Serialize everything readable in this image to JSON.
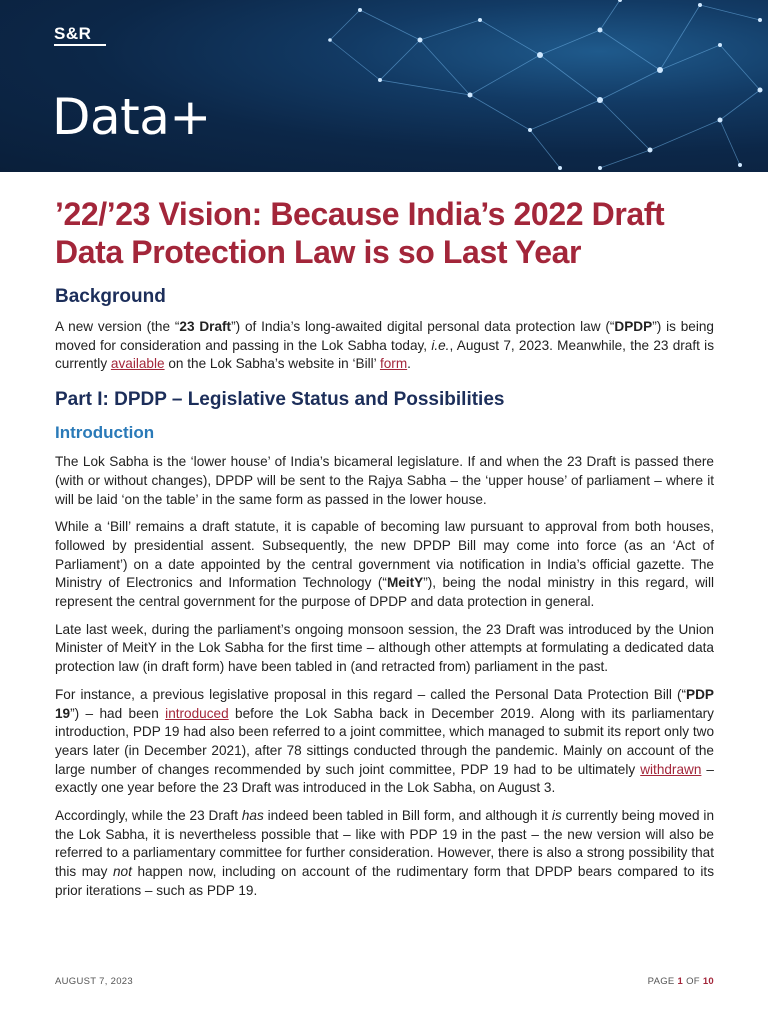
{
  "header": {
    "logo": "S&R",
    "brand": "Data+"
  },
  "title": "’22/’23 Vision: Because India’s 2022 Draft Data Protection Law is so Last Year",
  "background": {
    "heading": "Background",
    "p1": {
      "t1": "A new version (the “",
      "b1": "23 Draft",
      "t2": "”) of India’s long-awaited digital personal data protection law (“",
      "b2": "DPDP",
      "t3": "”) is being moved for consideration and passing in the Lok Sabha today, ",
      "i1": "i.e.",
      "t4": ", August 7, 2023. Meanwhile, the 23 draft is currently ",
      "link1": "available",
      "t5": " on the Lok Sabha’s website in ‘Bill’ ",
      "link2": "form",
      "t6": "."
    }
  },
  "part1": {
    "heading": "Part I: DPDP – Legislative Status and Possibilities",
    "intro_heading": "Introduction",
    "p1": "The Lok Sabha is the ‘lower house’ of India’s bicameral legislature. If and when the 23 Draft is passed there (with or without changes), DPDP will be sent to the Rajya Sabha – the ‘upper house’ of parliament – where it will be laid ‘on the table’ in the same form as passed in the lower house.",
    "p2": {
      "t1": "While a ‘Bill’ remains a draft statute, it is capable of becoming law pursuant to approval from both houses, followed by presidential assent. Subsequently, the new DPDP Bill may come into force (as an ‘Act of Parliament’) on a date appointed by the central government via notification in India’s official gazette. The Ministry of Electronics and Information Technology (“",
      "b1": "MeitY",
      "t2": "”), being the nodal ministry in this regard, will represent the central government for the purpose of DPDP and data protection in general."
    },
    "p3": "Late last week, during the parliament’s ongoing monsoon session, the 23 Draft was introduced by the Union Minister of MeitY in the Lok Sabha for the first time – although other attempts at formulating a dedicated data protection law (in draft form) have been tabled in (and retracted from) parliament in the past.",
    "p4": {
      "t1": "For instance, a previous legislative proposal in this regard – called the Personal Data Protection Bill (“",
      "b1": "PDP 19",
      "t2": "”) – had been ",
      "link1": "introduced",
      "t3": " before the Lok Sabha back in December 2019. Along with its parliamentary introduction, PDP 19 had also been referred to a joint committee, which managed to submit its report only two years later (in December 2021), after 78 sittings conducted through the pandemic. Mainly on account of the large number of changes recommended by such joint committee, PDP 19 had to be ultimately ",
      "link2": "withdrawn",
      "t4": " – exactly one year before the 23 Draft was introduced in the Lok Sabha, on August 3."
    },
    "p5": {
      "t1": "Accordingly, while the 23 Draft ",
      "i1": "has",
      "t2": " indeed been tabled in Bill form, and although it ",
      "i2": "is",
      "t3": " currently being moved in the Lok Sabha, it is nevertheless possible that – like with PDP 19 in the past – the new version will also be referred to a parliamentary committee for further consideration. However, there is also a strong possibility that this may ",
      "i3": "not",
      "t4": " happen now, including on account of the rudimentary form that DPDP bears compared to its prior iterations – such as PDP 19."
    }
  },
  "footer": {
    "date": "AUGUST 7, 2023",
    "page_label": "PAGE",
    "page_current": "1",
    "page_of": "OF",
    "page_total": "10"
  }
}
